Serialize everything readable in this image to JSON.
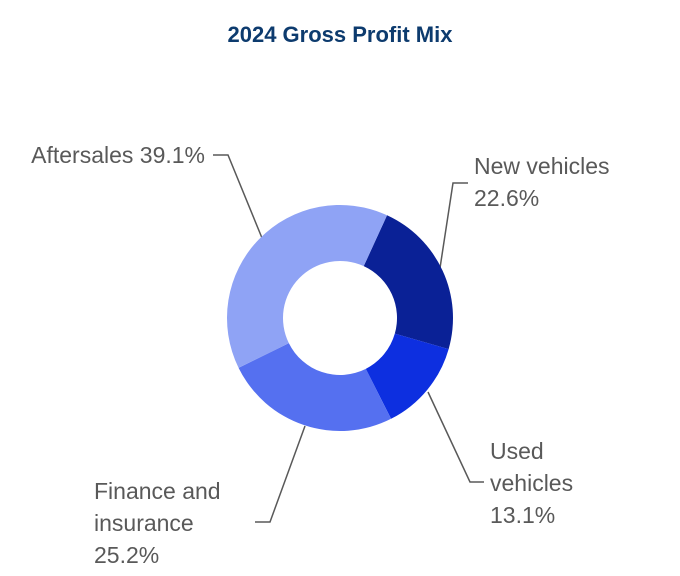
{
  "chart_data": {
    "type": "donut",
    "title": "2024 Gross Profit Mix",
    "categories": [
      "New vehicles",
      "Used vehicles",
      "Finance and insurance",
      "Aftersales"
    ],
    "values": [
      22.6,
      13.1,
      25.2,
      39.1
    ],
    "value_labels": [
      "22.6%",
      "13.1%",
      "25.2%",
      "39.1%"
    ],
    "colors": [
      "#0a2196",
      "#0d2fe0",
      "#5570f0",
      "#8fa3f5"
    ]
  }
}
